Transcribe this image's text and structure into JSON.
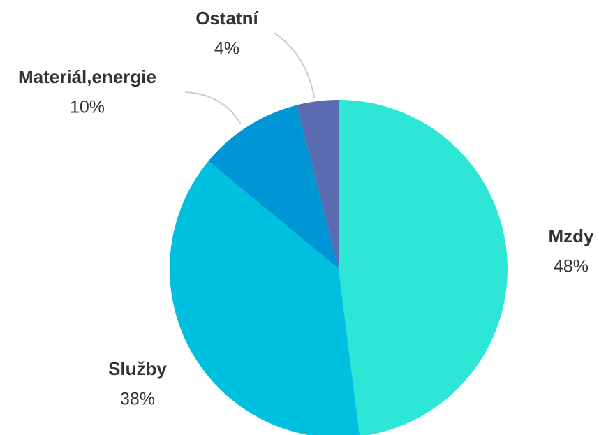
{
  "chart_data": {
    "type": "pie",
    "categories": [
      "Mzdy",
      "Služby",
      "Materiál,energie",
      "Ostatní"
    ],
    "values": [
      48,
      38,
      10,
      4
    ],
    "value_labels": [
      "48%",
      "38%",
      "10%",
      "4%"
    ],
    "colors": [
      "#2ee6d6",
      "#00c0e0",
      "#0096d6",
      "#5b6bb0"
    ]
  }
}
